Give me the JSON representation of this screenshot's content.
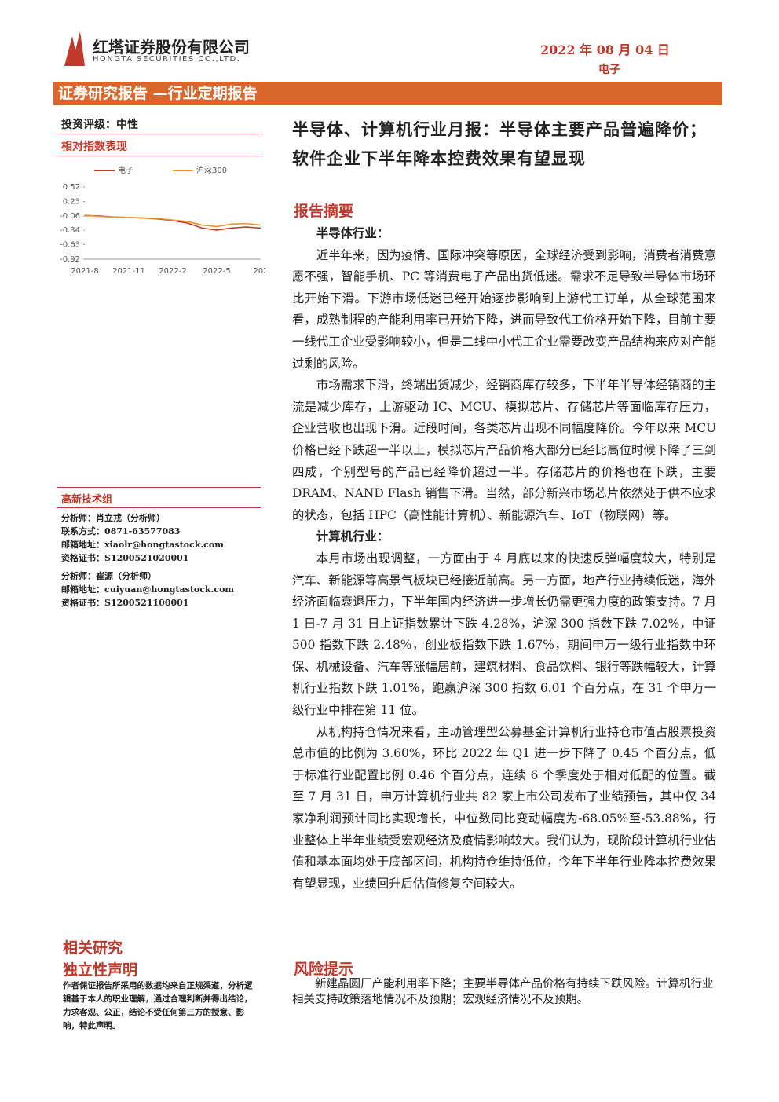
{
  "header": {
    "company": "红塔证券股份有限公司",
    "company_en": "HONGTA SECURITIES CO.,LTD.",
    "date": "2022 年 08 月 04 日",
    "sector": "电子"
  },
  "banner": "证券研究报告 —行业定期报告",
  "sidebar": {
    "rating": "投资评级：中性",
    "chart_heading": "相对指数表现",
    "team": "高新技术组",
    "analysts": [
      [
        [
          "分析师：",
          "肖立戎（分析师）"
        ],
        [
          "联系方式：",
          "0871-63577083"
        ],
        [
          "邮箱地址：",
          "xiaolr@hongtastock.com"
        ],
        [
          "资格证书：",
          "S1200521020001"
        ]
      ],
      [
        [
          "分析师：",
          "崔源（分析师）"
        ],
        [
          "邮箱地址：",
          "cuiyuan@hongtastock.com"
        ],
        [
          "资格证书：",
          "S1200521100001"
        ]
      ]
    ],
    "related": "相关研究",
    "disclaimer_title": "独立性声明",
    "disclaimer": "作者保证报告所采用的数据均来自正规渠道，分析逻辑基于本人的职业理解，通过合理判断并得出结论，力求客观、公正，结论不受任何第三方的授意、影响，特此声明。"
  },
  "chart_data": {
    "type": "line",
    "categories": [
      "2021-8",
      null,
      null,
      "2021-11",
      null,
      null,
      "2022-2",
      null,
      null,
      "2022-5",
      null,
      null,
      "202"
    ],
    "series": [
      {
        "name": "电子",
        "color": "#c0392b",
        "values": [
          -0.05,
          -0.06,
          -0.08,
          -0.09,
          -0.1,
          -0.12,
          -0.15,
          -0.2,
          -0.3,
          -0.34,
          -0.3,
          -0.28,
          -0.3
        ]
      },
      {
        "name": "沪深300",
        "color": "#e8952f",
        "values": [
          -0.04,
          -0.07,
          -0.08,
          -0.09,
          -0.1,
          -0.11,
          -0.14,
          -0.17,
          -0.24,
          -0.27,
          -0.22,
          -0.21,
          -0.24
        ]
      }
    ],
    "ylim": [
      -0.92,
      0.52
    ],
    "yticks": [
      0.52,
      0.23,
      -0.06,
      -0.34,
      -0.63,
      -0.92
    ]
  },
  "main": {
    "title": "半导体、计算机行业月报：半导体主要产品普遍降价；软件企业下半年降本控费效果有望显现",
    "summary_heading": "报告摘要",
    "sections": [
      {
        "heading": "半导体行业：",
        "paragraphs": [
          "近半年来，因为疫情、国际冲突等原因，全球经济受到影响，消费者消费意愿不强，智能手机、PC 等消费电子产品出货低迷。需求不足导致半导体市场环比开始下滑。下游市场低迷已经开始逐步影响到上游代工订单，从全球范围来看，成熟制程的产能利用率已开始下降，进而导致代工价格开始下降，目前主要一线代工企业受影响较小，但是二线中小代工企业需要改变产品结构来应对产能过剩的风险。",
          "市场需求下滑，终端出货减少，经销商库存较多，下半年半导体经销商的主流是减少库存，上游驱动 IC、MCU、模拟芯片、存储芯片等面临库存压力，企业营收也出现下滑。近段时间，各类芯片出现不同幅度降价。今年以来 MCU 价格已经下跌超一半以上，模拟芯片产品价格大部分已经比高位时候下降了三到四成，个别型号的产品已经降价超过一半。存储芯片的价格也在下跌，主要 DRAM、NAND Flash 销售下滑。当然，部分新兴市场芯片依然处于供不应求的状态，包括 HPC（高性能计算机）、新能源汽车、IoT（物联网）等。"
        ]
      },
      {
        "heading": "计算机行业：",
        "paragraphs": [
          "本月市场出现调整，一方面由于 4 月底以来的快速反弹幅度较大，特别是汽车、新能源等高景气板块已经接近前高。另一方面，地产行业持续低迷，海外经济面临衰退压力，下半年国内经济进一步增长仍需更强力度的政策支持。7 月 1 日-7 月 31 日上证指数累计下跌 4.28%，沪深 300 指数下跌 7.02%，中证 500 指数下跌 2.48%，创业板指数下跌 1.67%，期间申万一级行业指数中环保、机械设备、汽车等涨幅居前，建筑材料、食品饮料、银行等跌幅较大，计算机行业指数下跌 1.01%，跑赢沪深 300 指数 6.01 个百分点，在 31 个申万一级行业中排在第 11 位。",
          "从机构持仓情况来看，主动管理型公募基金计算机行业持仓市值占股票投资总市值的比例为 3.60%，环比 2022 年 Q1 进一步下降了 0.45 个百分点，低于标准行业配置比例 0.46 个百分点，连续 6 个季度处于相对低配的位置。截至 7 月 31 日，申万计算机行业共 82 家上市公司发布了业绩预告，其中仅 34 家净利润预计同比实现增长，中位数同比变动幅度为-68.05%至-53.88%，行业整体上半年业绩受宏观经济及疫情影响较大。我们认为，现阶段计算机行业估值和基本面均处于底部区间，机构持仓维持低位，今年下半年行业降本控费效果有望显现，业绩回升后估值修复空间较大。"
        ]
      }
    ],
    "risk_heading": "风险提示",
    "risk_text": "新建晶圆厂产能利用率下降；主要半导体产品价格有持续下跌风险。计算机行业相关支持政策落地情况不及预期；宏观经济情况不及预期。"
  }
}
